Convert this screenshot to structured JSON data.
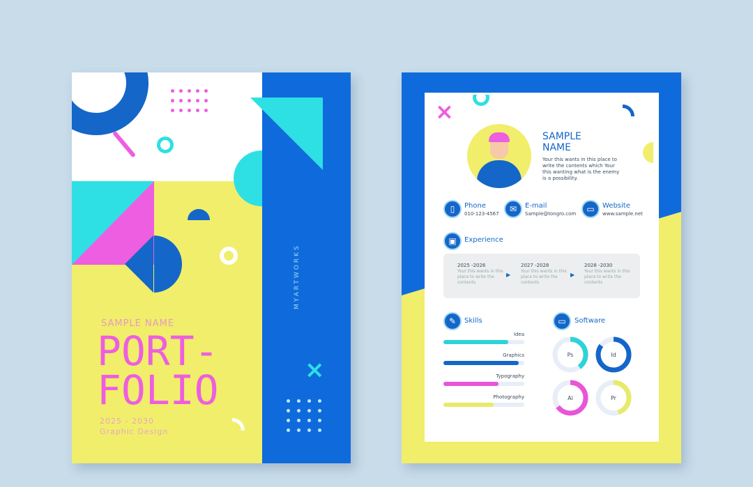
{
  "cover": {
    "sample_name": "SAMPLE NAME",
    "title_line1": "PORT-",
    "title_line2": "FOLIO",
    "years": "2025 - 2030",
    "subtitle": "Graphic Design",
    "vertical_text": "MYARTWORKS"
  },
  "resume": {
    "name_line1": "SAMPLE",
    "name_line2": "NAME",
    "intro": "Your this wants in this place to write the contents which Your this wanting what is the enemy is a possibility.",
    "contacts": [
      {
        "label": "Phone",
        "value": "010-123-4567",
        "icon": "phone-icon"
      },
      {
        "label": "E-mail",
        "value": "Sample@tongro.com",
        "icon": "mail-icon"
      },
      {
        "label": "Website",
        "value": "www.sample.net",
        "icon": "monitor-icon"
      }
    ],
    "experience": {
      "title": "Experience",
      "items": [
        {
          "years": "2025 -2026",
          "text": "Your this wants in this place to write the contents"
        },
        {
          "years": "2027 -2028",
          "text": "Your this wants in this place to write the contents"
        },
        {
          "years": "2028 -2030",
          "text": "Your this wants in this place to write the contents"
        }
      ]
    },
    "skills": {
      "title": "Skills",
      "items": [
        {
          "label": "Idea",
          "percent": 80,
          "color": "#2ed3d8"
        },
        {
          "label": "Graphics",
          "percent": 93,
          "color": "#1466c8"
        },
        {
          "label": "Typography",
          "percent": 68,
          "color": "#e855d8"
        },
        {
          "label": "Photography",
          "percent": 62,
          "color": "#e8ea6a"
        }
      ]
    },
    "software": {
      "title": "Software",
      "items": [
        {
          "label": "Ps",
          "percent": 40,
          "color": "#2ed3d8"
        },
        {
          "label": "Id",
          "percent": 85,
          "color": "#1466c8"
        },
        {
          "label": "Ai",
          "percent": 65,
          "color": "#e855d8"
        },
        {
          "label": "Pr",
          "percent": 45,
          "color": "#e8ea6a"
        }
      ]
    }
  },
  "colors": {
    "blue": "#0f6bdc",
    "yellow": "#f1ee6b",
    "pink": "#ee5ee0",
    "cyan": "#2ee0e4"
  }
}
